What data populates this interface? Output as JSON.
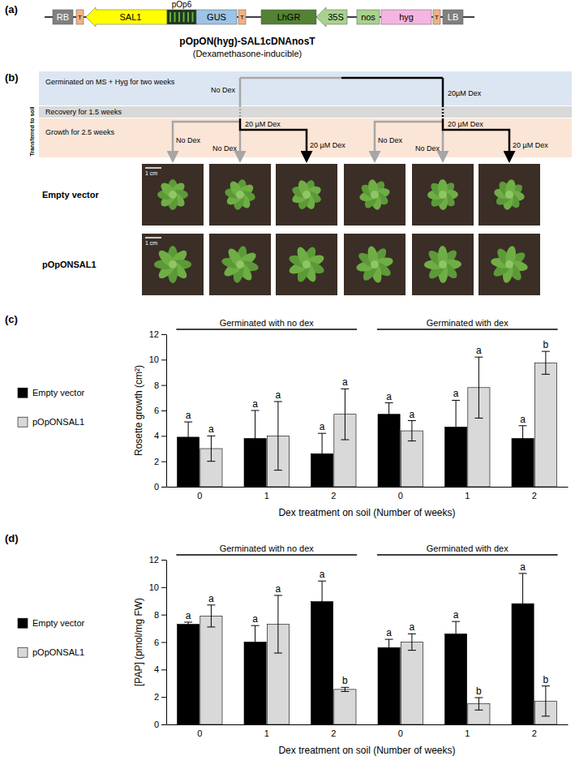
{
  "construct": {
    "panel_label": "(a)",
    "elements": [
      "RB",
      "T",
      "SAL1",
      "pOp6",
      "GUS",
      "T",
      "LhGR",
      "35S",
      "nos",
      "hyg",
      "T",
      "LB"
    ],
    "name": "pOpON(hyg)-SAL1cDNAnosT",
    "subtitle": "(Dexamethasone-inducible)"
  },
  "scheme": {
    "panel_label": "(b)",
    "stages": [
      "Germinated on MS + Hyg for two weeks",
      "Recovery for 1.5 weeks",
      "Growth for 2.5 weeks"
    ],
    "side_label": "Transferred to soil",
    "branches": [
      {
        "label": "No Dex",
        "soil_labels": [
          "No Dex",
          "20 µM Dex",
          "No Dex",
          "20 µM Dex"
        ]
      },
      {
        "label": "20µM Dex",
        "soil_labels": [
          "No Dex",
          "20 µM Dex",
          "No Dex",
          "20 µM Dex"
        ]
      }
    ],
    "rows": [
      "Empty vector",
      "pOpONSAL1"
    ],
    "scale_bar": "1 cm"
  },
  "chart_data": [
    {
      "type": "bar",
      "panel_label": "(c)",
      "categories": [
        "0",
        "1",
        "2",
        "0",
        "1",
        "2"
      ],
      "group_labels": [
        "Germinated with no dex",
        "Germinated with dex"
      ],
      "x_label": "Dex treatment on soil (Number of weeks)",
      "y_label": "Rosette growth (cm²)",
      "ylim": [
        0,
        12
      ],
      "yticks": [
        0,
        2,
        4,
        6,
        8,
        10,
        12
      ],
      "legend": "left",
      "series": [
        {
          "name": "Empty vector",
          "color": "#000000",
          "values": [
            3.9,
            3.8,
            2.6,
            5.7,
            4.7,
            3.8
          ],
          "errors": [
            1.2,
            2.2,
            1.6,
            0.9,
            2.1,
            1.0
          ],
          "letters": [
            "a",
            "a",
            "a",
            "a",
            "a",
            "a"
          ]
        },
        {
          "name": "pOpONSAL1",
          "color": "#d9d9d9",
          "values": [
            3.0,
            4.0,
            5.7,
            4.4,
            7.8,
            9.75
          ],
          "errors": [
            1.0,
            2.7,
            2.0,
            0.8,
            2.4,
            0.9
          ],
          "letters": [
            "a",
            "a",
            "a",
            "a",
            "a",
            "b"
          ]
        }
      ]
    },
    {
      "type": "bar",
      "panel_label": "(d)",
      "categories": [
        "0",
        "1",
        "2",
        "0",
        "1",
        "2"
      ],
      "group_labels": [
        "Germinated with no dex",
        "Germinated with dex"
      ],
      "x_label": "Dex treatment on soil (Number of weeks)",
      "y_label": "[PAP] (pmol/mg FW)",
      "ylim": [
        0,
        12
      ],
      "yticks": [
        0,
        2,
        4,
        6,
        8,
        10,
        12
      ],
      "legend": "left",
      "series": [
        {
          "name": "Empty vector",
          "color": "#000000",
          "values": [
            7.3,
            6.0,
            8.95,
            5.6,
            6.6,
            8.8
          ],
          "errors": [
            0.15,
            1.2,
            1.5,
            0.6,
            0.9,
            2.2
          ],
          "letters": [
            "a",
            "a",
            "a",
            "a",
            "a",
            "a"
          ]
        },
        {
          "name": "pOpONSAL1",
          "color": "#d9d9d9",
          "values": [
            7.9,
            7.3,
            2.55,
            6.0,
            1.5,
            1.7
          ],
          "errors": [
            0.8,
            2.1,
            0.15,
            0.6,
            0.45,
            1.1
          ],
          "letters": [
            "a",
            "a",
            "b",
            "a",
            "b",
            "b"
          ]
        }
      ]
    }
  ]
}
